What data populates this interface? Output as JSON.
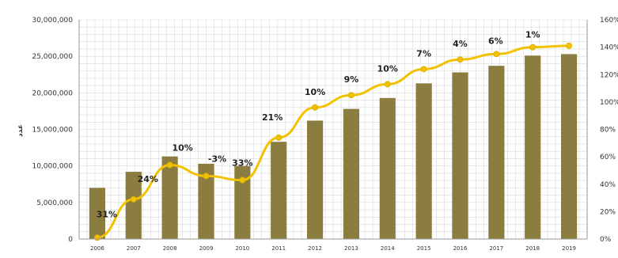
{
  "chart_data": {
    "type": "bar",
    "ylabel": "عدد",
    "categories": [
      "2006",
      "2007",
      "2008",
      "2009",
      "2010",
      "2011",
      "2012",
      "2013",
      "2014",
      "2015",
      "2016",
      "2017",
      "2018",
      "2019"
    ],
    "ylim": [
      0,
      30000000
    ],
    "y2lim": [
      0,
      160
    ],
    "y_ticks": [
      "0",
      "5,000,000",
      "10,000,000",
      "15,000,000",
      "20,000,000",
      "25,000,000",
      "30,000,000"
    ],
    "y2_ticks": [
      "0%",
      "20%",
      "40%",
      "60%",
      "80%",
      "100%",
      "120%",
      "140%",
      "160%"
    ],
    "series": [
      {
        "type": "bar",
        "axis": "left",
        "values": [
          7000000,
          9200000,
          11300000,
          10300000,
          10000000,
          13300000,
          16200000,
          17800000,
          19300000,
          21300000,
          22800000,
          23700000,
          25100000,
          25300000
        ]
      },
      {
        "type": "line",
        "axis": "right",
        "values": [
          1,
          29,
          54,
          46,
          43,
          74,
          96,
          105,
          113,
          124,
          131,
          135,
          140,
          141
        ],
        "labels": [
          "31%",
          "24%",
          "10%",
          "-3%",
          "33%",
          "21%",
          "10%",
          "9%",
          "10%",
          "7%",
          "4%",
          "6%",
          "1%",
          ""
        ]
      }
    ],
    "colors": {
      "bar": "#8b7d3f",
      "line": "#f2c200",
      "grid": "#d9d9d9"
    },
    "grid": true,
    "legend": "none"
  }
}
